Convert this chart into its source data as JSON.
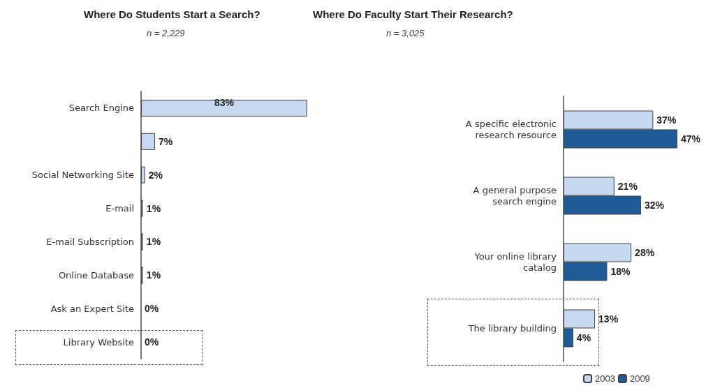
{
  "chart_data": [
    {
      "type": "bar",
      "title": "Where Do Students Start a Search?",
      "subtitle": "n = 2,229",
      "orientation": "horizontal",
      "categories": [
        "Search Engine",
        null,
        "Social Networking Site",
        "E-mail",
        "E-mail Subscription",
        "Online Database",
        "Ask an Expert Site",
        "Library Website"
      ],
      "values": [
        83,
        7,
        2,
        1,
        1,
        1,
        0,
        0
      ],
      "value_labels": [
        "83%",
        "7%",
        "2%",
        "1%",
        "1%",
        "1%",
        "0%",
        "0%"
      ],
      "color": "#c6d9f1",
      "legend": false
    },
    {
      "type": "bar",
      "title": "Where Do Faculty Start Their Research?",
      "subtitle": "n = 3,025",
      "orientation": "horizontal",
      "categories": [
        "A specific electronic\nresearch resource",
        "A general purpose\nsearch engine",
        "Your online library\ncatalog",
        "The library building"
      ],
      "series": [
        {
          "name": "2003",
          "color": "#c6d9f1",
          "values": [
            37,
            21,
            28,
            13
          ],
          "value_labels": [
            "37%",
            "21%",
            "28%",
            "13%"
          ]
        },
        {
          "name": "2009",
          "color": "#1f5b99",
          "values": [
            47,
            32,
            18,
            4
          ],
          "value_labels": [
            "47%",
            "32%",
            "18%",
            "4%"
          ]
        }
      ],
      "legend": "bottom"
    }
  ]
}
